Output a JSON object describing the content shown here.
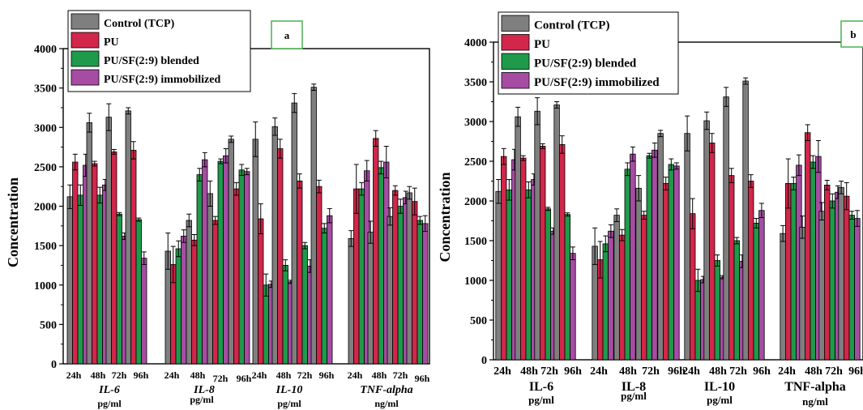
{
  "chart_data": [
    {
      "panel_label": "a",
      "type": "bar",
      "ylabel": "Concentration",
      "ylim": [
        0,
        4000
      ],
      "yticks": [
        0,
        500,
        1000,
        1500,
        2000,
        2500,
        3000,
        3500,
        4000
      ],
      "legend_position": "top-left",
      "groups": [
        {
          "name": "IL-6",
          "unit": "pg/ml",
          "name_style": "italic"
        },
        {
          "name": "IL-8",
          "unit": "pg/ml",
          "name_style": "italic"
        },
        {
          "name": "IL-10",
          "unit": "pg/ml",
          "name_style": "italic"
        },
        {
          "name": "TNF-alpha",
          "unit": "ng/ml",
          "name_style": "italic"
        }
      ],
      "time_points": [
        "24h",
        "48h",
        "72h",
        "96h"
      ],
      "series": [
        {
          "name": "Control (TCP)",
          "color": "#7f7f7f",
          "values": [
            [
              2120,
              3060,
              3130,
              3210
            ],
            [
              1430,
              1820,
              2160,
              2850
            ],
            [
              2850,
              3010,
              3310,
              3510
            ],
            [
              1590,
              1670,
              1870,
              2170
            ]
          ],
          "errors": [
            [
              150,
              120,
              170,
              40
            ],
            [
              230,
              80,
              160,
              40
            ],
            [
              220,
              110,
              120,
              40
            ],
            [
              100,
              140,
              110,
              80
            ]
          ]
        },
        {
          "name": "PU",
          "color": "#d2264a",
          "values": [
            [
              2560,
              2540,
              2690,
              2710
            ],
            [
              1260,
              1570,
              1820,
              2220
            ],
            [
              1840,
              2730,
              2320,
              2250
            ],
            [
              2220,
              2860,
              2200,
              2060
            ]
          ],
          "errors": [
            [
              100,
              30,
              30,
              110
            ],
            [
              230,
              70,
              50,
              80
            ],
            [
              190,
              120,
              90,
              80
            ],
            [
              310,
              100,
              60,
              170
            ]
          ]
        },
        {
          "name": "PU/SF(2:9) blended",
          "color": "#1e9a4a",
          "values": [
            [
              2140,
              2140,
              1900,
              1830
            ],
            [
              1460,
              2400,
              2570,
              2460
            ],
            [
              1000,
              1250,
              1500,
              1720
            ],
            [
              2220,
              2490,
              2000,
              1820
            ]
          ],
          "errors": [
            [
              130,
              100,
              20,
              20
            ],
            [
              100,
              80,
              30,
              70
            ],
            [
              140,
              70,
              40,
              60
            ],
            [
              80,
              80,
              90,
              50
            ]
          ]
        },
        {
          "name": "PU/SF(2:9) immobilized",
          "color": "#a64ca3",
          "values": [
            [
              2520,
              2270,
              1620,
              1340
            ],
            [
              1620,
              2590,
              2640,
              2440
            ],
            [
              1010,
              1040,
              1240,
              1880
            ],
            [
              2450,
              2560,
              2110,
              1780
            ]
          ],
          "errors": [
            [
              140,
              70,
              40,
              80
            ],
            [
              80,
              90,
              90,
              40
            ],
            [
              40,
              20,
              80,
              90
            ],
            [
              130,
              200,
              80,
              100
            ]
          ]
        }
      ]
    },
    {
      "panel_label": "b",
      "type": "bar",
      "ylabel": "Concentration",
      "ylim": [
        0,
        4000
      ],
      "yticks": [
        0,
        500,
        1000,
        1500,
        2000,
        2500,
        3000,
        3500,
        4000
      ],
      "legend_position": "top-left",
      "groups": [
        {
          "name": "IL-6",
          "unit": "pg/ml",
          "name_style": "normal"
        },
        {
          "name": "IL-8",
          "unit": "pg/ml",
          "name_style": "normal"
        },
        {
          "name": "IL-10",
          "unit": "pg/ml",
          "name_style": "normal"
        },
        {
          "name": "TNF-alpha",
          "unit": "ng/ml",
          "name_style": "normal"
        }
      ],
      "time_points": [
        "24h",
        "48h",
        "72h",
        "96h"
      ],
      "series": [
        {
          "name": "Control (TCP)",
          "color": "#7f7f7f",
          "values": [
            [
              2120,
              3060,
              3130,
              3210
            ],
            [
              1430,
              1820,
              2160,
              2850
            ],
            [
              2850,
              3010,
              3310,
              3510
            ],
            [
              1590,
              1670,
              1870,
              2170
            ]
          ],
          "errors": [
            [
              150,
              120,
              170,
              40
            ],
            [
              230,
              80,
              160,
              40
            ],
            [
              220,
              110,
              120,
              40
            ],
            [
              100,
              140,
              110,
              80
            ]
          ]
        },
        {
          "name": "PU",
          "color": "#d2264a",
          "values": [
            [
              2560,
              2540,
              2690,
              2710
            ],
            [
              1260,
              1570,
              1820,
              2220
            ],
            [
              1840,
              2730,
              2320,
              2250
            ],
            [
              2220,
              2860,
              2200,
              2060
            ]
          ],
          "errors": [
            [
              100,
              30,
              30,
              110
            ],
            [
              230,
              70,
              50,
              80
            ],
            [
              190,
              120,
              90,
              80
            ],
            [
              310,
              100,
              60,
              170
            ]
          ]
        },
        {
          "name": "PU/SF(2:9) blended",
          "color": "#1e9a4a",
          "values": [
            [
              2140,
              2140,
              1900,
              1830
            ],
            [
              1460,
              2400,
              2570,
              2460
            ],
            [
              1000,
              1250,
              1500,
              1720
            ],
            [
              2220,
              2490,
              2000,
              1820
            ]
          ],
          "errors": [
            [
              130,
              100,
              20,
              20
            ],
            [
              100,
              80,
              30,
              70
            ],
            [
              140,
              70,
              40,
              60
            ],
            [
              80,
              80,
              90,
              50
            ]
          ]
        },
        {
          "name": "PU/SF(2:9) immobilized",
          "color": "#a64ca3",
          "values": [
            [
              2520,
              2270,
              1620,
              1340
            ],
            [
              1620,
              2590,
              2640,
              2440
            ],
            [
              1010,
              1040,
              1240,
              1880
            ],
            [
              2450,
              2560,
              2110,
              1780
            ]
          ],
          "errors": [
            [
              130,
              70,
              40,
              80
            ],
            [
              80,
              90,
              90,
              40
            ],
            [
              40,
              20,
              80,
              90
            ],
            [
              130,
              200,
              80,
              100
            ]
          ]
        }
      ]
    }
  ]
}
